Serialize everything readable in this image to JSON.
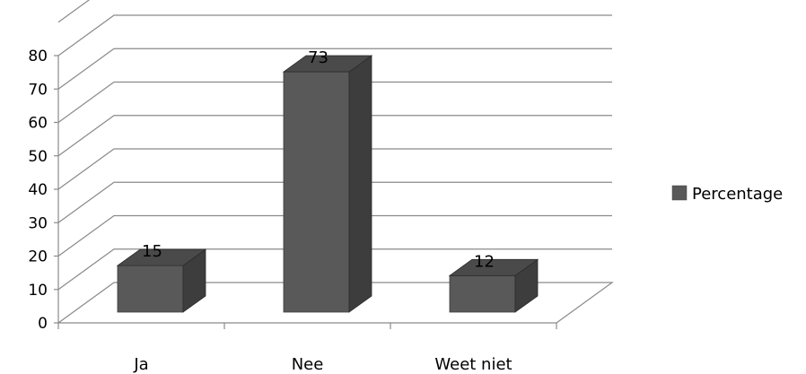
{
  "chart_data": {
    "type": "bar",
    "style": "3d-column",
    "title": "",
    "xlabel": "",
    "ylabel": "",
    "categories": [
      "Ja",
      "Nee",
      "Weet niet"
    ],
    "series": [
      {
        "name": "Percentage",
        "values": [
          15,
          73,
          12
        ],
        "color": "#595959"
      }
    ],
    "ylim": [
      0,
      80
    ],
    "yticks": [
      0,
      10,
      20,
      30,
      40,
      50,
      60,
      70,
      80
    ],
    "grid": true,
    "legend": "right",
    "data_labels": true
  }
}
